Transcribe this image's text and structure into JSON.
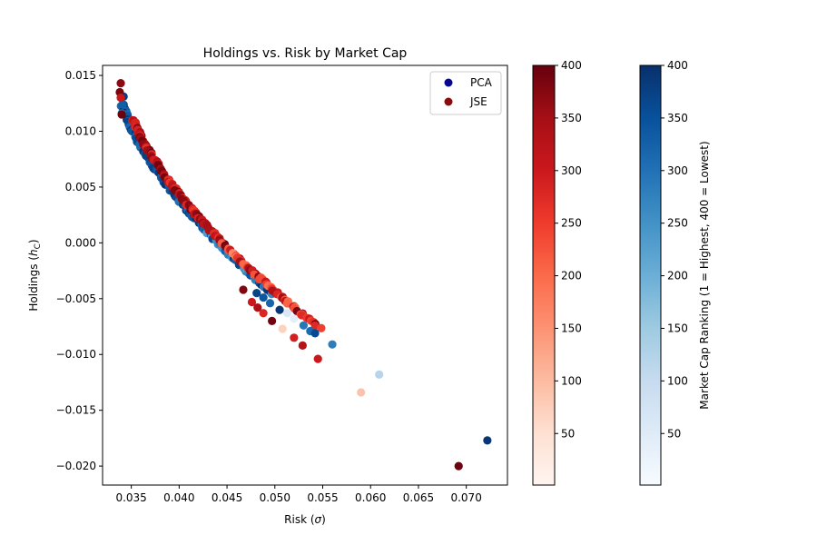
{
  "chart_data": {
    "type": "scatter",
    "title": "Holdings vs. Risk by Market Cap",
    "xlabel_main": "Risk (",
    "xlabel_symbol": "σ",
    "xlabel_close": ")",
    "ylabel_main": "Holdings (",
    "ylabel_symbol": "h",
    "ylabel_sub": "C",
    "ylabel_close": ")",
    "xlim": [
      0.032,
      0.0743
    ],
    "ylim": [
      -0.0217,
      0.0159
    ],
    "xticks": [
      0.035,
      0.04,
      0.045,
      0.05,
      0.055,
      0.06,
      0.065,
      0.07
    ],
    "xtick_labels": [
      "0.035",
      "0.040",
      "0.045",
      "0.050",
      "0.055",
      "0.060",
      "0.065",
      "0.070"
    ],
    "yticks": [
      0.015,
      0.01,
      0.005,
      0.0,
      -0.005,
      -0.01,
      -0.015,
      -0.02
    ],
    "ytick_labels": [
      "0.015",
      "0.010",
      "0.005",
      "0.000",
      "−0.005",
      "−0.010",
      "−0.015",
      "−0.020"
    ],
    "legend": {
      "position": "upper right",
      "entries": [
        {
          "label": "PCA",
          "color": "#08088f"
        },
        {
          "label": "JSE",
          "color": "#8b0a0a"
        }
      ]
    },
    "curve_model": {
      "min_risk": 0.0336,
      "k": 0.0144,
      "b": 0.041,
      "c": 0.43
    },
    "series": [
      {
        "name": "PCA",
        "colormap": "Blues",
        "bulk_y_range": [
          -0.0045,
          0.0125
        ],
        "points": [
          {
            "x": 0.0342,
            "y": 0.0131,
            "rank": 380
          },
          {
            "x": 0.0341,
            "y": 0.0124,
            "rank": 330
          },
          {
            "x": 0.034,
            "y": 0.0116,
            "rank": 300
          },
          {
            "x": 0.0481,
            "y": -0.0045,
            "rank": 370
          },
          {
            "x": 0.0488,
            "y": -0.0049,
            "rank": 340
          },
          {
            "x": 0.0495,
            "y": -0.0054,
            "rank": 320
          },
          {
            "x": 0.0505,
            "y": -0.006,
            "rank": 390
          },
          {
            "x": 0.0513,
            "y": -0.0063,
            "rank": 60
          },
          {
            "x": 0.052,
            "y": -0.0068,
            "rank": 40
          },
          {
            "x": 0.053,
            "y": -0.0074,
            "rank": 290
          },
          {
            "x": 0.0537,
            "y": -0.0079,
            "rank": 310
          },
          {
            "x": 0.0542,
            "y": -0.0081,
            "rank": 360
          },
          {
            "x": 0.056,
            "y": -0.0091,
            "rank": 280
          },
          {
            "x": 0.0609,
            "y": -0.0118,
            "rank": 120
          },
          {
            "x": 0.0722,
            "y": -0.0177,
            "rank": 390
          }
        ]
      },
      {
        "name": "JSE",
        "colormap": "Reds",
        "bulk_y_range": [
          -0.0075,
          0.011
        ],
        "points": [
          {
            "x": 0.0339,
            "y": 0.0143,
            "rank": 370
          },
          {
            "x": 0.0338,
            "y": 0.0135,
            "rank": 385
          },
          {
            "x": 0.0339,
            "y": 0.013,
            "rank": 300
          },
          {
            "x": 0.034,
            "y": 0.0115,
            "rank": 395
          },
          {
            "x": 0.0467,
            "y": -0.0042,
            "rank": 380
          },
          {
            "x": 0.0476,
            "y": -0.0053,
            "rank": 300
          },
          {
            "x": 0.0482,
            "y": -0.0058,
            "rank": 340
          },
          {
            "x": 0.0488,
            "y": -0.0063,
            "rank": 280
          },
          {
            "x": 0.0497,
            "y": -0.007,
            "rank": 390
          },
          {
            "x": 0.0508,
            "y": -0.0077,
            "rank": 70
          },
          {
            "x": 0.052,
            "y": -0.0085,
            "rank": 290
          },
          {
            "x": 0.0529,
            "y": -0.0092,
            "rank": 330
          },
          {
            "x": 0.0545,
            "y": -0.0104,
            "rank": 300
          },
          {
            "x": 0.059,
            "y": -0.0134,
            "rank": 90
          },
          {
            "x": 0.0692,
            "y": -0.02,
            "rank": 395
          }
        ]
      }
    ],
    "colorbars": [
      {
        "name": "JSE colorbar",
        "colormap": "Reds",
        "range": [
          1,
          400
        ],
        "ticks": [
          50,
          100,
          150,
          200,
          250,
          300,
          350,
          400
        ],
        "label": ""
      },
      {
        "name": "PCA colorbar",
        "colormap": "Blues",
        "range": [
          1,
          400
        ],
        "ticks": [
          50,
          100,
          150,
          200,
          250,
          300,
          350,
          400
        ],
        "label": "Market Cap Ranking (1 = Highest, 400 = Lowest)"
      }
    ],
    "colors": {
      "reds": [
        "#fff5f0",
        "#fee0d2",
        "#fcbba1",
        "#fc9272",
        "#fb6a4a",
        "#ef3b2c",
        "#cb181d",
        "#a50f15",
        "#67000d"
      ],
      "blues": [
        "#f7fbff",
        "#deebf7",
        "#c6dbef",
        "#9ecae1",
        "#6baed6",
        "#4292c6",
        "#2171b5",
        "#08519c",
        "#08306b"
      ]
    }
  }
}
